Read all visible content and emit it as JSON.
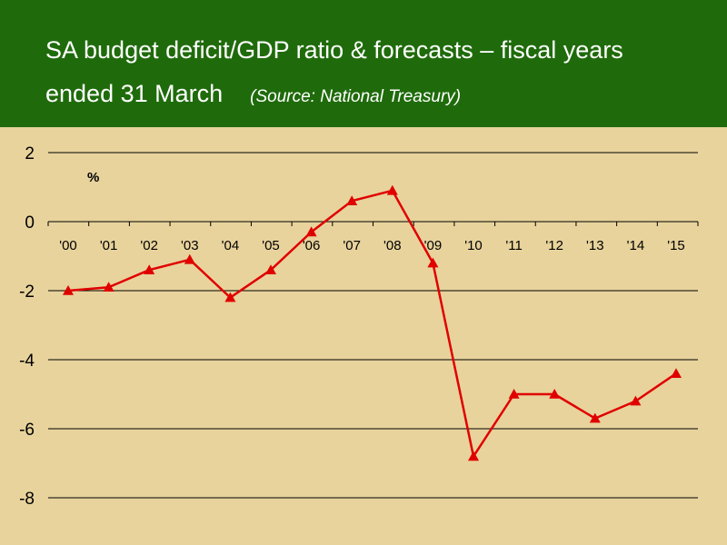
{
  "header": {
    "title_line1": "SA budget deficit/GDP ratio & forecasts – fiscal years",
    "title_line2": "ended 31 March",
    "source": "(Source: National Treasury)"
  },
  "colors": {
    "header_bg": "#1f6b0b",
    "plot_bg": "#e8d39c",
    "series": "#e00000",
    "grid": "#000000"
  },
  "chart_data": {
    "type": "line",
    "title": "SA budget deficit/GDP ratio & forecasts – fiscal years ended 31 March",
    "ylabel": "%",
    "xlabel": "",
    "categories": [
      "'00",
      "'01",
      "'02",
      "'03",
      "'04",
      "'05",
      "'06",
      "'07",
      "'08",
      "'09",
      "'10",
      "'11",
      "'12",
      "'13",
      "'14",
      "'15"
    ],
    "series": [
      {
        "values": [
          -2.0,
          -1.9,
          -1.4,
          -1.1,
          -2.2,
          -1.4,
          -0.3,
          0.6,
          0.9,
          -1.2,
          -6.8,
          -5.0,
          -5.0,
          -5.7,
          -5.2,
          -4.4
        ],
        "marker": "triangle"
      }
    ],
    "ylim": [
      -8,
      2
    ],
    "yticks": [
      2,
      0,
      -2,
      -4,
      -6,
      -8
    ],
    "grid": true,
    "legend": "none"
  }
}
